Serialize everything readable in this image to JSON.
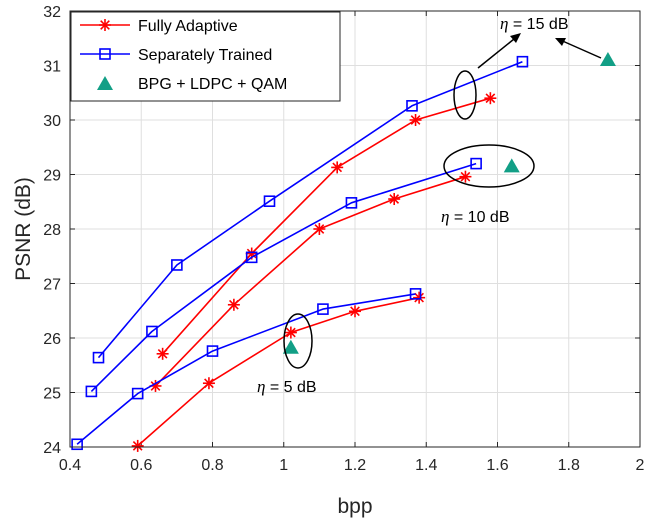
{
  "chart_data": {
    "type": "line",
    "title": "",
    "xlabel": "bpp",
    "ylabel": "PSNR (dB)",
    "xlim": [
      0.4,
      2.0
    ],
    "ylim": [
      24,
      32
    ],
    "grid": true,
    "xticks": [
      0.4,
      0.6,
      0.8,
      1.0,
      1.2,
      1.4,
      1.6,
      1.8,
      2.0
    ],
    "xtick_labels": [
      "0.4",
      "0.6",
      "0.8",
      "1",
      "1.2",
      "1.4",
      "1.6",
      "1.8",
      "2"
    ],
    "yticks": [
      24,
      25,
      26,
      27,
      28,
      29,
      30,
      31,
      32
    ],
    "ytick_labels": [
      "24",
      "25",
      "26",
      "27",
      "28",
      "29",
      "30",
      "31",
      "32"
    ],
    "legend_position": "top-left",
    "legend": [
      {
        "label": "Fully Adaptive",
        "color": "#ff0000",
        "marker": "asterisk"
      },
      {
        "label": "Separately Trained",
        "color": "#0000ff",
        "marker": "square"
      },
      {
        "label": "BPG + LDPC + QAM",
        "color": "#129f86",
        "marker": "triangle"
      }
    ],
    "series": [
      {
        "name": "Fully Adaptive (η = 5 dB)",
        "group": "Fully Adaptive",
        "color": "#ff0000",
        "marker": "asterisk",
        "x": [
          0.59,
          0.79,
          1.02,
          1.2,
          1.38
        ],
        "y": [
          24.02,
          25.17,
          26.1,
          26.49,
          26.74
        ]
      },
      {
        "name": "Fully Adaptive (η = 10 dB)",
        "group": "Fully Adaptive",
        "color": "#ff0000",
        "marker": "asterisk",
        "x": [
          0.64,
          0.86,
          1.1,
          1.31,
          1.51
        ],
        "y": [
          25.12,
          26.61,
          28.0,
          28.55,
          28.96
        ]
      },
      {
        "name": "Fully Adaptive (η = 15 dB)",
        "group": "Fully Adaptive",
        "color": "#ff0000",
        "marker": "asterisk",
        "x": [
          0.66,
          0.91,
          1.15,
          1.37,
          1.58
        ],
        "y": [
          25.71,
          27.55,
          29.13,
          30.0,
          30.4
        ]
      },
      {
        "name": "Separately Trained (η = 5 dB)",
        "group": "Separately Trained",
        "color": "#0000ff",
        "marker": "square",
        "x": [
          0.42,
          0.59,
          0.8,
          1.11,
          1.37
        ],
        "y": [
          24.05,
          24.98,
          25.76,
          26.53,
          26.81
        ]
      },
      {
        "name": "Separately Trained (η = 10 dB)",
        "group": "Separately Trained",
        "color": "#0000ff",
        "marker": "square",
        "x": [
          0.46,
          0.63,
          0.91,
          1.19,
          1.54
        ],
        "y": [
          25.02,
          26.12,
          27.48,
          28.48,
          29.2
        ]
      },
      {
        "name": "Separately Trained (η = 15 dB)",
        "group": "Separately Trained",
        "color": "#0000ff",
        "marker": "square",
        "x": [
          0.48,
          0.7,
          0.96,
          1.36,
          1.67
        ],
        "y": [
          25.64,
          27.34,
          28.51,
          30.26,
          31.07
        ]
      },
      {
        "name": "BPG + LDPC + QAM",
        "group": "BPG + LDPC + QAM",
        "color": "#129f86",
        "marker": "triangle",
        "x": [
          1.02,
          1.64,
          1.91
        ],
        "y": [
          25.82,
          29.15,
          31.1
        ]
      }
    ],
    "annotations": [
      {
        "eta": "η",
        "text": " = 5 dB"
      },
      {
        "eta": "η",
        "text": " = 10 dB"
      },
      {
        "eta": "η",
        "text": " = 15 dB"
      }
    ]
  }
}
